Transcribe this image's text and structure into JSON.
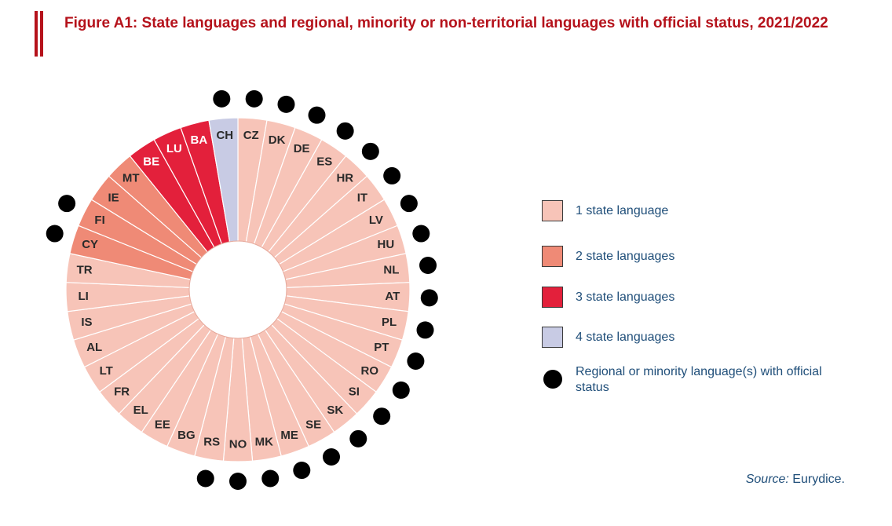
{
  "title": "Figure A1: State languages and regional, minority or non-territorial languages with official status, 2021/2022",
  "source": {
    "label": "Source:",
    "value": " Eurydice."
  },
  "colors": {
    "1": "#f7c4b8",
    "2": "#ef8a76",
    "3": "#e3203b",
    "4": "#c8cbe4",
    "dot": "#000000",
    "title": "#b5121b"
  },
  "legend": [
    {
      "key": "1",
      "label": "1 state language"
    },
    {
      "key": "2",
      "label": "2 state languages"
    },
    {
      "key": "3",
      "label": "3 state languages"
    },
    {
      "key": "4",
      "label": "4 state languages"
    },
    {
      "key": "dot",
      "label": "Regional or minority language(s) with official status"
    }
  ],
  "chart_data": {
    "type": "pie",
    "title": "",
    "categories": [
      "CZ",
      "DK",
      "DE",
      "ES",
      "HR",
      "IT",
      "LV",
      "HU",
      "NL",
      "AT",
      "PL",
      "PT",
      "RO",
      "SI",
      "SK",
      "SE",
      "ME",
      "MK",
      "NO",
      "RS",
      "BG",
      "EE",
      "EL",
      "FR",
      "LT",
      "AL",
      "IS",
      "LI",
      "TR",
      "CY",
      "FI",
      "IE",
      "MT",
      "BE",
      "LU",
      "BA",
      "CH"
    ],
    "state_languages": [
      1,
      1,
      1,
      1,
      1,
      1,
      1,
      1,
      1,
      1,
      1,
      1,
      1,
      1,
      1,
      1,
      1,
      1,
      1,
      1,
      1,
      1,
      1,
      1,
      1,
      1,
      1,
      1,
      1,
      2,
      2,
      2,
      2,
      3,
      3,
      3,
      4
    ],
    "regional_minority_official_status": [
      true,
      true,
      true,
      true,
      true,
      true,
      true,
      true,
      true,
      true,
      true,
      true,
      true,
      true,
      true,
      true,
      true,
      true,
      true,
      true,
      false,
      false,
      false,
      false,
      false,
      false,
      false,
      false,
      false,
      true,
      true,
      false,
      false,
      false,
      false,
      false,
      true
    ],
    "values": [
      1,
      1,
      1,
      1,
      1,
      1,
      1,
      1,
      1,
      1,
      1,
      1,
      1,
      1,
      1,
      1,
      1,
      1,
      1,
      1,
      1,
      1,
      1,
      1,
      1,
      1,
      1,
      1,
      1,
      1,
      1,
      1,
      1,
      1,
      1,
      1,
      1
    ]
  }
}
